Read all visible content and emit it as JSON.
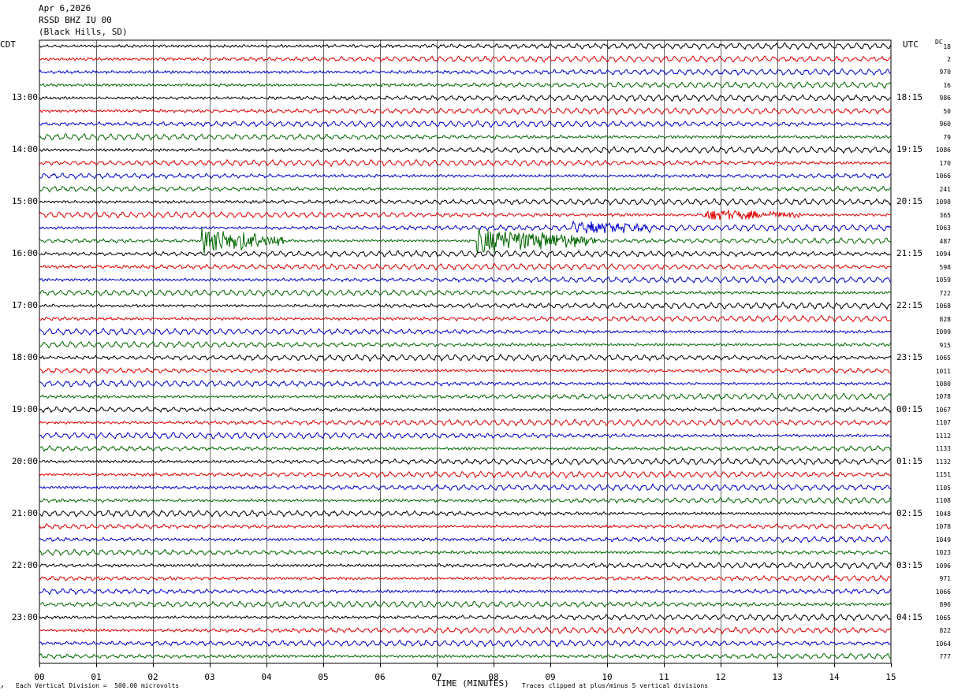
{
  "header": {
    "date": "Apr 6,2026",
    "station": "RSSD BHZ IU 00",
    "location": "(Black Hills, SD)"
  },
  "left_tz": "CDT",
  "right_tz": "UTC",
  "dc_label": "DC",
  "footer": {
    "scale": "Each Vertical Division =  500.00 microvolts",
    "clip": "Traces clipped at plus/minus 5 vertical divisions"
  },
  "chart_data": {
    "type": "line",
    "title": "",
    "xlabel": "TIME (MINUTES)",
    "xlim": [
      0,
      15
    ],
    "x_ticks": [
      "00",
      "01",
      "02",
      "03",
      "04",
      "05",
      "06",
      "07",
      "08",
      "09",
      "10",
      "11",
      "12",
      "13",
      "14",
      "15"
    ],
    "trace_colors": [
      "#000000",
      "#dd0000",
      "#0000cc",
      "#006600"
    ],
    "rows_per_hour": 4,
    "left_hour_labels": [
      "13:00",
      "14:00",
      "15:00",
      "16:00",
      "17:00",
      "18:00",
      "19:00",
      "20:00",
      "21:00",
      "22:00",
      "23:00"
    ],
    "right_hour_labels": [
      "18:15",
      "19:15",
      "20:15",
      "21:15",
      "22:15",
      "23:15",
      "00:15",
      "01:15",
      "02:15",
      "03:15",
      "04:15"
    ],
    "dc_offsets": [
      "18",
      "2",
      "970",
      "16",
      "986",
      "50",
      "960",
      "79",
      "1086",
      "170",
      "1066",
      "241",
      "1098",
      "365",
      "1063",
      "487",
      "1094",
      "598",
      "1059",
      "722",
      "1068",
      "828",
      "1099",
      "915",
      "1065",
      "1011",
      "1080",
      "1078",
      "1067",
      "1107",
      "1112",
      "1133",
      "1132",
      "1151",
      "1105",
      "1108",
      "1048",
      "1078",
      "1049",
      "1023",
      "1096",
      "971",
      "1066",
      "896",
      "1065",
      "822",
      "1064",
      "777"
    ],
    "events": [
      {
        "row": 13,
        "start_min": 11.7,
        "end_min": 13.4,
        "amplitude": "moderate"
      },
      {
        "row": 14,
        "start_min": 9.4,
        "end_min": 11.0,
        "amplitude": "moderate"
      },
      {
        "row": 15,
        "start_min": 2.85,
        "end_min": 4.3,
        "amplitude": "large"
      },
      {
        "row": 15,
        "start_min": 7.7,
        "end_min": 9.8,
        "amplitude": "large"
      }
    ]
  }
}
